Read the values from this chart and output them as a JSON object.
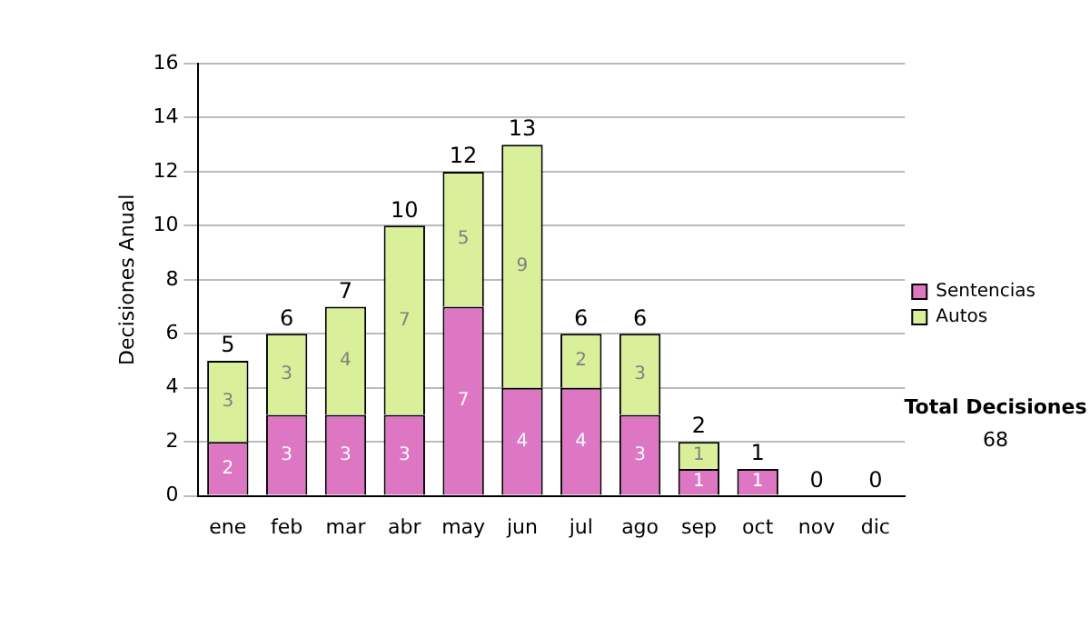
{
  "chart_data": {
    "type": "bar",
    "stacked": true,
    "ylabel": "Decisiones Anual",
    "categories": [
      "ene",
      "feb",
      "mar",
      "abr",
      "may",
      "jun",
      "jul",
      "ago",
      "sep",
      "oct",
      "nov",
      "dic"
    ],
    "series": [
      {
        "name": "Sentencias",
        "color": "#dd77c4",
        "values": [
          2,
          3,
          3,
          3,
          7,
          4,
          4,
          3,
          1,
          1,
          0,
          0
        ],
        "value_labels": [
          "2",
          "3",
          "3",
          "3",
          "7",
          "4",
          "4",
          "3",
          "1",
          "1",
          null,
          null
        ]
      },
      {
        "name": "Autos",
        "color": "#d9ef99",
        "values": [
          3,
          3,
          4,
          7,
          5,
          9,
          2,
          3,
          1,
          0,
          0,
          0
        ],
        "value_labels": [
          "3",
          "3",
          "4",
          "7",
          "5",
          "9",
          "2",
          "3",
          "1",
          null,
          null,
          null
        ]
      }
    ],
    "totals": [
      "5",
      "6",
      "7",
      "10",
      "12",
      "13",
      "6",
      "6",
      "2",
      "1",
      "0",
      "0"
    ],
    "ylim": [
      0,
      16
    ],
    "yticks": [
      0,
      2,
      4,
      6,
      8,
      10,
      12,
      14,
      16
    ],
    "grid": "y",
    "legend": "right",
    "annotations": [
      "Total Decisiones",
      "68"
    ]
  }
}
